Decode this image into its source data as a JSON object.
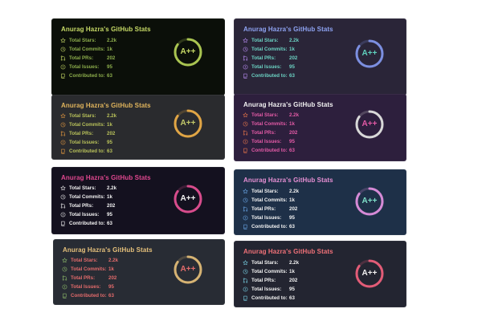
{
  "cards": [
    {
      "title": "Anurag Hazra's GitHub Stats",
      "title_color": "#c7da66",
      "text_color": "#8dae4c",
      "icon_color": "#c7da66",
      "bg": "#0b0f09",
      "ring_color": "#a9c451",
      "rank_color": "#c7da66",
      "stats": [
        {
          "label": "Total Stars:",
          "value": "2.2k",
          "icon": "star-icon"
        },
        {
          "label": "Total Commits:",
          "value": "1k",
          "icon": "clock-icon"
        },
        {
          "label": "Total PRs:",
          "value": "202",
          "icon": "pull-request-icon"
        },
        {
          "label": "Total Issues:",
          "value": "95",
          "icon": "issue-icon"
        },
        {
          "label": "Contributed to:",
          "value": "63",
          "icon": "repo-icon"
        }
      ],
      "rank": "A++",
      "rank_progress": 0.85
    },
    {
      "title": "Anurag Hazra's GitHub Stats",
      "title_color": "#8ea3f2",
      "text_color": "#6bd1c2",
      "icon_color": "#b88cf2",
      "bg": "#2a2538",
      "ring_color": "#7c8fe0",
      "rank_color": "#5fd1bd",
      "stats": [
        {
          "label": "Total Stars:",
          "value": "2.2k",
          "icon": "star-icon"
        },
        {
          "label": "Total Commits:",
          "value": "1k",
          "icon": "clock-icon"
        },
        {
          "label": "Total PRs:",
          "value": "202",
          "icon": "pull-request-icon"
        },
        {
          "label": "Total Issues:",
          "value": "95",
          "icon": "issue-icon"
        },
        {
          "label": "Contributed to:",
          "value": "63",
          "icon": "repo-icon"
        }
      ],
      "rank": "A++",
      "rank_progress": 0.85
    },
    {
      "title": "Anurag Hazra's GitHub Stats",
      "title_color": "#e0b45c",
      "text_color": "#b8c15a",
      "icon_color": "#e0963f",
      "bg": "#2a2b2e",
      "ring_color": "#e0a545",
      "rank_color": "#c2c96a",
      "stats": [
        {
          "label": "Total Stars:",
          "value": "2.2k",
          "icon": "star-icon"
        },
        {
          "label": "Total Commits:",
          "value": "1k",
          "icon": "clock-icon"
        },
        {
          "label": "Total PRs:",
          "value": "202",
          "icon": "pull-request-icon"
        },
        {
          "label": "Total Issues:",
          "value": "95",
          "icon": "issue-icon"
        },
        {
          "label": "Contributed to:",
          "value": "63",
          "icon": "repo-icon"
        }
      ],
      "rank": "A++",
      "rank_progress": 0.85
    },
    {
      "title": "Anurag Hazra's GitHub Stats",
      "title_color": "#f2f2f2",
      "text_color": "#e35aa6",
      "icon_color": "#e8764a",
      "bg": "#2d1f3d",
      "ring_color": "#d8d8d8",
      "rank_color": "#e35aa6",
      "stats": [
        {
          "label": "Total Stars:",
          "value": "2.2k",
          "icon": "star-icon"
        },
        {
          "label": "Total Commits:",
          "value": "1k",
          "icon": "clock-icon"
        },
        {
          "label": "Total PRs:",
          "value": "202",
          "icon": "pull-request-icon"
        },
        {
          "label": "Total Issues:",
          "value": "95",
          "icon": "issue-icon"
        },
        {
          "label": "Contributed to:",
          "value": "63",
          "icon": "repo-icon"
        }
      ],
      "rank": "A++",
      "rank_progress": 0.85
    },
    {
      "title": "Anurag Hazra's GitHub Stats",
      "title_color": "#e0478f",
      "text_color": "#f2f2f2",
      "icon_color": "#f2f2f2",
      "bg": "#14111f",
      "ring_color": "#d84c8c",
      "rank_color": "#f2f2f2",
      "stats": [
        {
          "label": "Total Stars:",
          "value": "2.2k",
          "icon": "star-icon"
        },
        {
          "label": "Total Commits:",
          "value": "1k",
          "icon": "clock-icon"
        },
        {
          "label": "Total PRs:",
          "value": "202",
          "icon": "pull-request-icon"
        },
        {
          "label": "Total Issues:",
          "value": "95",
          "icon": "issue-icon"
        },
        {
          "label": "Contributed to:",
          "value": "63",
          "icon": "repo-icon"
        }
      ],
      "rank": "A++",
      "rank_progress": 0.85
    },
    {
      "title": "Anurag Hazra's GitHub Stats",
      "title_color": "#e68fd3",
      "text_color": "#f2f2f2",
      "icon_color": "#6aa6e6",
      "bg": "#1e3048",
      "ring_color": "#d58ad6",
      "rank_color": "#7fe0c9",
      "stats": [
        {
          "label": "Total Stars:",
          "value": "2.2k",
          "icon": "star-icon"
        },
        {
          "label": "Total Commits:",
          "value": "1k",
          "icon": "clock-icon"
        },
        {
          "label": "Total PRs:",
          "value": "202",
          "icon": "pull-request-icon"
        },
        {
          "label": "Total Issues:",
          "value": "95",
          "icon": "issue-icon"
        },
        {
          "label": "Contributed to:",
          "value": "63",
          "icon": "repo-icon"
        }
      ],
      "rank": "A++",
      "rank_progress": 0.85
    },
    {
      "title": "Anurag Hazra's GitHub Stats",
      "title_color": "#e5c07b",
      "text_color": "#e36b6b",
      "icon_color": "#8fbd6b",
      "bg": "#282c34",
      "ring_color": "#d6b373",
      "rank_color": "#e36b6b",
      "stats": [
        {
          "label": "Total Stars:",
          "value": "2.2k",
          "icon": "star-icon"
        },
        {
          "label": "Total Commits:",
          "value": "1k",
          "icon": "clock-icon"
        },
        {
          "label": "Total PRs:",
          "value": "202",
          "icon": "pull-request-icon"
        },
        {
          "label": "Total Issues:",
          "value": "95",
          "icon": "issue-icon"
        },
        {
          "label": "Contributed to:",
          "value": "63",
          "icon": "repo-icon"
        }
      ],
      "rank": "A++",
      "rank_progress": 0.85
    },
    {
      "title": "Anurag Hazra's GitHub Stats",
      "title_color": "#f07178",
      "text_color": "#f2f2f2",
      "icon_color": "#79d2e6",
      "bg": "#232531",
      "ring_color": "#e25c77",
      "rank_color": "#f2f2f2",
      "stats": [
        {
          "label": "Total Stars:",
          "value": "2.2k",
          "icon": "star-icon"
        },
        {
          "label": "Total Commits:",
          "value": "1k",
          "icon": "clock-icon"
        },
        {
          "label": "Total PRs:",
          "value": "202",
          "icon": "pull-request-icon"
        },
        {
          "label": "Total Issues:",
          "value": "95",
          "icon": "issue-icon"
        },
        {
          "label": "Contributed to:",
          "value": "63",
          "icon": "repo-icon"
        }
      ],
      "rank": "A++",
      "rank_progress": 0.85
    }
  ]
}
